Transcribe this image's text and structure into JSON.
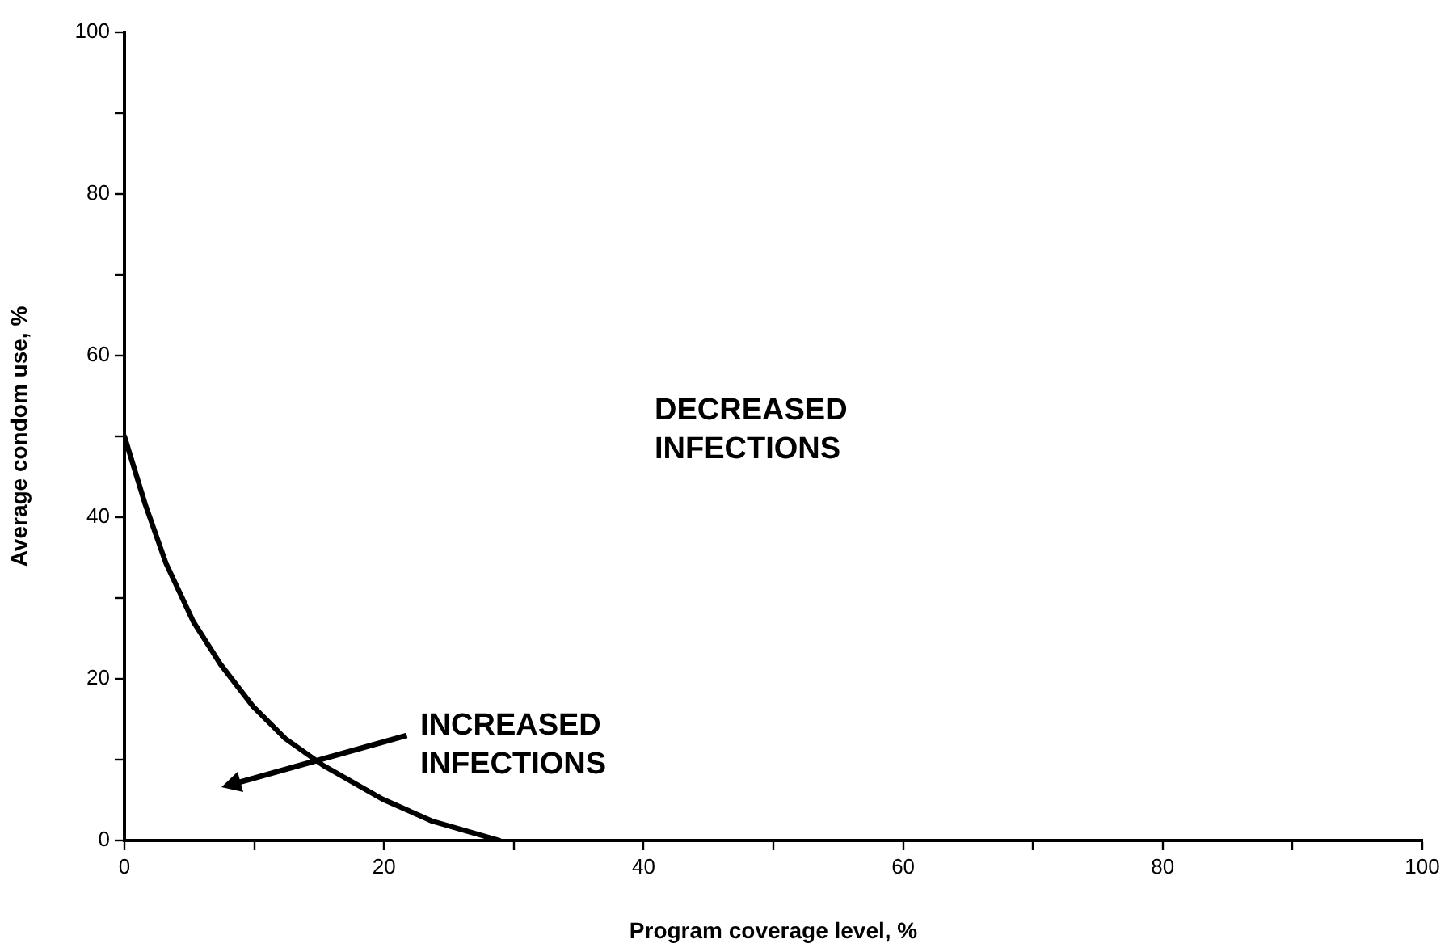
{
  "chart_data": {
    "type": "line",
    "xlabel": "Program coverage level, %",
    "ylabel": "Average condom use, %",
    "x": [
      0,
      1.6,
      3.2,
      5.3,
      7.4,
      9.9,
      12.4,
      15.3,
      19.9,
      23.7,
      28.9
    ],
    "series": [
      {
        "color": "#000000",
        "values": [
          50,
          41.6,
          34.3,
          27.1,
          21.8,
          16.6,
          12.6,
          9.3,
          5.1,
          2.4,
          0
        ]
      }
    ],
    "xlim": [
      0,
      100
    ],
    "ylim": [
      0,
      100
    ],
    "xticks": [
      0,
      {
        "value": 10,
        "label": null
      },
      20,
      {
        "value": 30,
        "label": null
      },
      40,
      {
        "value": 50,
        "label": null
      },
      60,
      {
        "value": 70,
        "label": null
      },
      80,
      {
        "value": 90,
        "label": null
      },
      100
    ],
    "yticks": [
      0,
      {
        "value": 10,
        "label": null
      },
      20,
      {
        "value": 30,
        "label": null
      },
      40,
      {
        "value": 50,
        "label": null
      },
      60,
      {
        "value": 70,
        "label": null
      },
      80,
      {
        "value": 90,
        "label": null
      },
      100
    ],
    "grid": false,
    "legend": false,
    "marker": "none",
    "line_style": "solid",
    "annotations": [
      "DECREASED\nINFECTIONS",
      "INCREASED\nINFECTIONS"
    ]
  }
}
